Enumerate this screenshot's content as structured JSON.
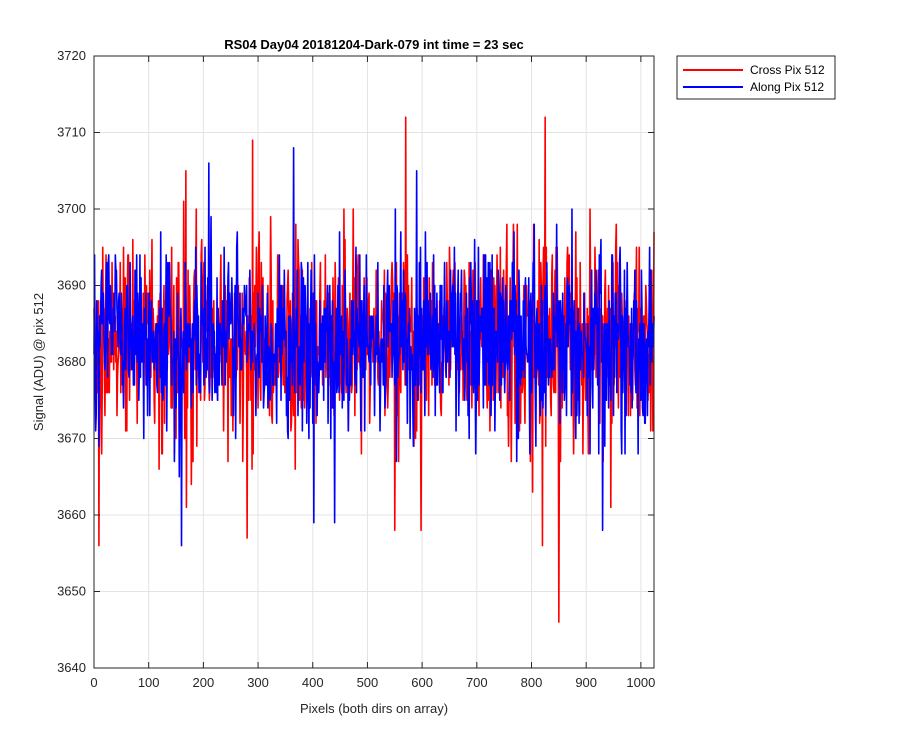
{
  "chart_data": {
    "type": "line",
    "title": "RS04 Day04 20181204-Dark-079 int time = 23 sec",
    "xlabel": "Pixels (both dirs on array)",
    "ylabel": "Signal (ADU) @ pix 512",
    "xlim": [
      0,
      1024
    ],
    "ylim": [
      3640,
      3720
    ],
    "xticks": [
      0,
      100,
      200,
      300,
      400,
      500,
      600,
      700,
      800,
      900,
      1000
    ],
    "yticks": [
      3640,
      3650,
      3660,
      3670,
      3680,
      3690,
      3700,
      3710,
      3720
    ],
    "grid": true,
    "legend_position": "outside-top-right",
    "series": [
      {
        "name": "Cross Pix 512",
        "color": "#ff0000",
        "mean": 3683,
        "std": 6.5,
        "noted_extremes": [
          {
            "x": 9,
            "y": 3656
          },
          {
            "x": 168,
            "y": 3705
          },
          {
            "x": 280,
            "y": 3657
          },
          {
            "x": 290,
            "y": 3709
          },
          {
            "x": 550,
            "y": 3658
          },
          {
            "x": 570,
            "y": 3712
          },
          {
            "x": 825,
            "y": 3712
          },
          {
            "x": 820,
            "y": 3656
          },
          {
            "x": 850,
            "y": 3646
          },
          {
            "x": 945,
            "y": 3661
          }
        ]
      },
      {
        "name": "Along Pix 512",
        "color": "#0000ff",
        "mean": 3683,
        "std": 6.0,
        "noted_extremes": [
          {
            "x": 160,
            "y": 3656
          },
          {
            "x": 210,
            "y": 3706
          },
          {
            "x": 365,
            "y": 3708
          },
          {
            "x": 440,
            "y": 3659
          },
          {
            "x": 590,
            "y": 3705
          },
          {
            "x": 930,
            "y": 3658
          }
        ]
      }
    ]
  }
}
